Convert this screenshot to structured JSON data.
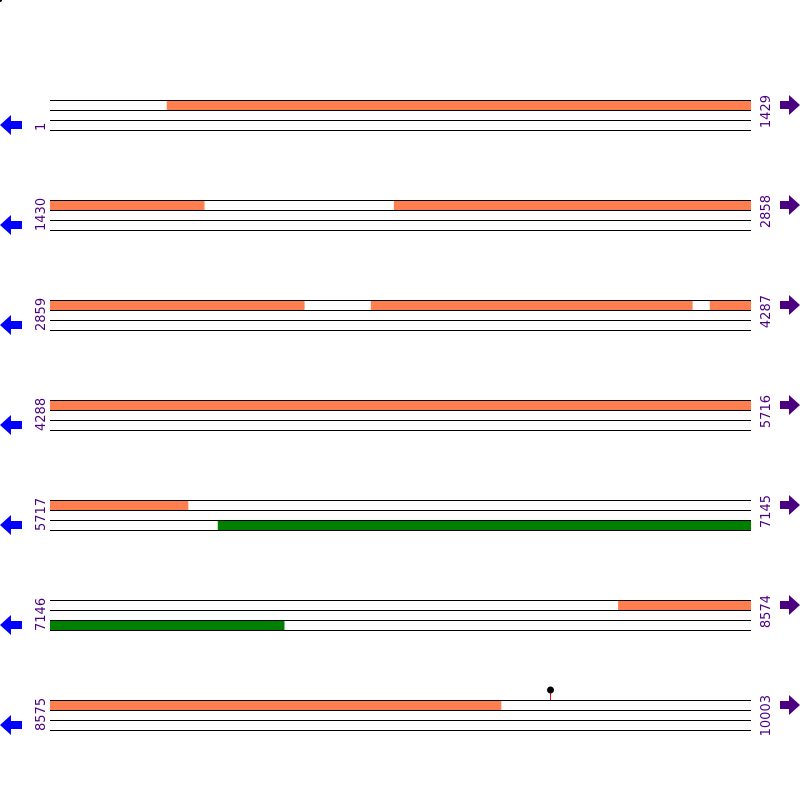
{
  "colors": {
    "orange": "#ff7f50",
    "green": "#008000",
    "line": "#000000",
    "left_arrow": "#0000ff",
    "right_arrow": "#4b0082",
    "marker_stem": "#ff0000",
    "marker_head": "#000000"
  },
  "icons": {
    "left": "arrow-left-icon",
    "right": "arrow-right-icon"
  },
  "rows": [
    {
      "start": "1",
      "end": "1429",
      "s": 1,
      "e": 1429,
      "features": [
        {
          "strand": "top",
          "from": 239,
          "to": 1429,
          "color": "orange"
        }
      ]
    },
    {
      "start": "1430",
      "end": "2858",
      "s": 1430,
      "e": 2858,
      "features": [
        {
          "strand": "top",
          "from": 1430,
          "to": 1744,
          "color": "orange"
        },
        {
          "strand": "top",
          "from": 2131,
          "to": 2858,
          "color": "orange"
        }
      ]
    },
    {
      "start": "2859",
      "end": "4287",
      "s": 2859,
      "e": 4287,
      "features": [
        {
          "strand": "top",
          "from": 2859,
          "to": 3377,
          "color": "orange"
        },
        {
          "strand": "top",
          "from": 3513,
          "to": 4168,
          "color": "orange"
        },
        {
          "strand": "top",
          "from": 4204,
          "to": 4287,
          "color": "orange"
        }
      ]
    },
    {
      "start": "4288",
      "end": "5716",
      "s": 4288,
      "e": 5716,
      "features": [
        {
          "strand": "top",
          "from": 4288,
          "to": 5716,
          "color": "orange"
        }
      ]
    },
    {
      "start": "5717",
      "end": "7145",
      "s": 5717,
      "e": 7145,
      "features": [
        {
          "strand": "top",
          "from": 5717,
          "to": 5998,
          "color": "orange"
        },
        {
          "strand": "bottom",
          "from": 6059,
          "to": 7145,
          "color": "green"
        }
      ]
    },
    {
      "start": "7146",
      "end": "8574",
      "s": 7146,
      "e": 8574,
      "features": [
        {
          "strand": "top",
          "from": 8304,
          "to": 8574,
          "color": "orange"
        },
        {
          "strand": "bottom",
          "from": 7146,
          "to": 7623,
          "color": "green"
        }
      ]
    },
    {
      "start": "8575",
      "end": "10003",
      "s": 8575,
      "e": 10003,
      "features": [
        {
          "strand": "top",
          "from": 8575,
          "to": 9494,
          "color": "orange"
        }
      ],
      "markers": [
        9594
      ]
    }
  ]
}
